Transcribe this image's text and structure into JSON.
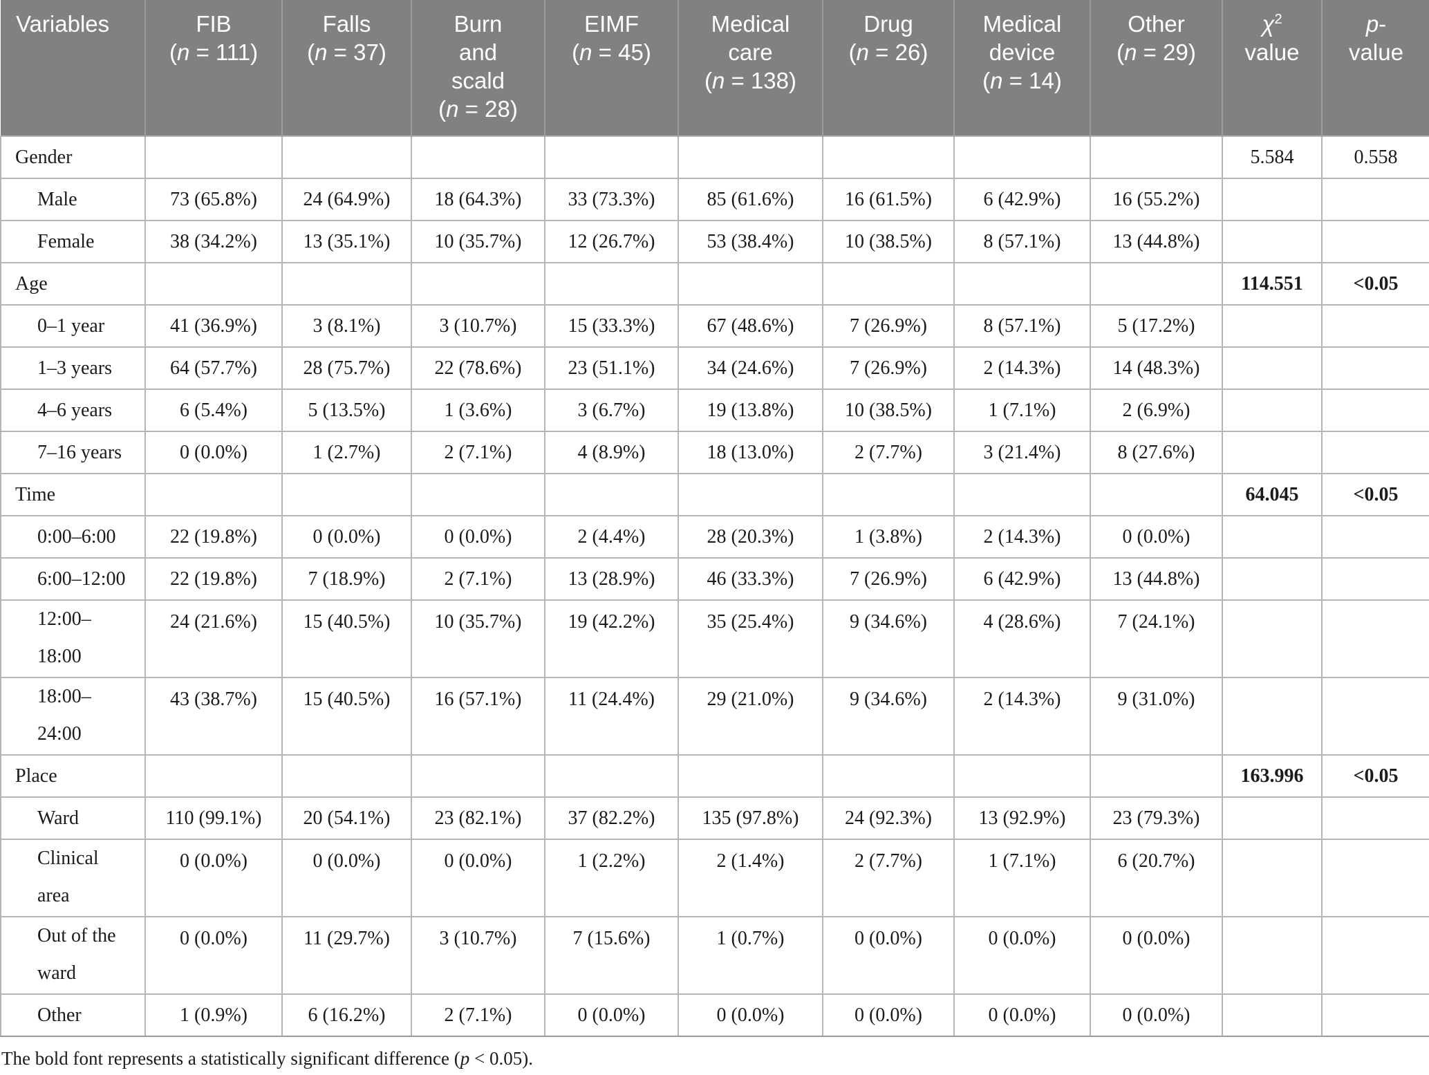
{
  "table": {
    "columns": [
      {
        "id": "variables",
        "label": "Variables"
      },
      {
        "id": "fib",
        "label": "FIB",
        "n_prefix": "(",
        "n_italic": "n",
        "n_suffix": " = 111)"
      },
      {
        "id": "falls",
        "label": "Falls",
        "n_prefix": "(",
        "n_italic": "n",
        "n_suffix": " = 37)"
      },
      {
        "id": "burn-and-scald",
        "label": "Burn and scald",
        "n_prefix": "(",
        "n_italic": "n",
        "n_suffix": " = 28)"
      },
      {
        "id": "eimf",
        "label": "EIMF",
        "n_prefix": "(",
        "n_italic": "n",
        "n_suffix": " = 45)"
      },
      {
        "id": "medical-care",
        "label": "Medical care",
        "n_prefix": "(",
        "n_italic": "n",
        "n_suffix": " = 138)"
      },
      {
        "id": "drug",
        "label": "Drug",
        "n_prefix": "(",
        "n_italic": "n",
        "n_suffix": " = 26)"
      },
      {
        "id": "medical-device",
        "label": "Medical device",
        "n_prefix": "(",
        "n_italic": "n",
        "n_suffix": " = 14)"
      },
      {
        "id": "other",
        "label": "Other",
        "n_prefix": "(",
        "n_italic": "n",
        "n_suffix": " = 29)"
      },
      {
        "id": "chi2-value",
        "sym_italic": "χ",
        "sym_sup": "2",
        "line2": "value"
      },
      {
        "id": "p-value",
        "p_italic": "p",
        "p_suffix": "-",
        "line2": "value"
      }
    ],
    "rows": [
      {
        "type": "category",
        "label": "Gender",
        "chi2": "5.584",
        "p": "0.558",
        "significant": false
      },
      {
        "type": "sub",
        "label": "Male",
        "values": [
          "73 (65.8%)",
          "24 (64.9%)",
          "18 (64.3%)",
          "33 (73.3%)",
          "85 (61.6%)",
          "16 (61.5%)",
          "6 (42.9%)",
          "16 (55.2%)"
        ]
      },
      {
        "type": "sub",
        "label": "Female",
        "values": [
          "38 (34.2%)",
          "13 (35.1%)",
          "10 (35.7%)",
          "12 (26.7%)",
          "53 (38.4%)",
          "10 (38.5%)",
          "8 (57.1%)",
          "13 (44.8%)"
        ]
      },
      {
        "type": "category",
        "label": "Age",
        "chi2": "114.551",
        "p": "<0.05",
        "significant": true
      },
      {
        "type": "sub",
        "label": "0–1 year",
        "values": [
          "41 (36.9%)",
          "3 (8.1%)",
          "3 (10.7%)",
          "15 (33.3%)",
          "67 (48.6%)",
          "7 (26.9%)",
          "8 (57.1%)",
          "5 (17.2%)"
        ]
      },
      {
        "type": "sub",
        "label": "1–3 years",
        "values": [
          "64 (57.7%)",
          "28 (75.7%)",
          "22 (78.6%)",
          "23 (51.1%)",
          "34 (24.6%)",
          "7 (26.9%)",
          "2 (14.3%)",
          "14 (48.3%)"
        ]
      },
      {
        "type": "sub",
        "label": "4–6 years",
        "values": [
          "6 (5.4%)",
          "5 (13.5%)",
          "1 (3.6%)",
          "3 (6.7%)",
          "19 (13.8%)",
          "10 (38.5%)",
          "1 (7.1%)",
          "2 (6.9%)"
        ]
      },
      {
        "type": "sub",
        "label": "7–16 years",
        "values": [
          "0 (0.0%)",
          "1 (2.7%)",
          "2 (7.1%)",
          "4 (8.9%)",
          "18 (13.0%)",
          "2 (7.7%)",
          "3 (21.4%)",
          "8 (27.6%)"
        ]
      },
      {
        "type": "category",
        "label": "Time",
        "chi2": "64.045",
        "p": "<0.05",
        "significant": true
      },
      {
        "type": "sub",
        "label": "0:00–6:00",
        "values": [
          "22 (19.8%)",
          "0 (0.0%)",
          "0 (0.0%)",
          "2 (4.4%)",
          "28 (20.3%)",
          "1 (3.8%)",
          "2 (14.3%)",
          "0 (0.0%)"
        ]
      },
      {
        "type": "sub",
        "label": "6:00–12:00",
        "values": [
          "22 (19.8%)",
          "7 (18.9%)",
          "2 (7.1%)",
          "13 (28.9%)",
          "46 (33.3%)",
          "7 (26.9%)",
          "6 (42.9%)",
          "13 (44.8%)"
        ]
      },
      {
        "type": "sub",
        "label": "12:00–18:00",
        "wrap": true,
        "values": [
          "24 (21.6%)",
          "15 (40.5%)",
          "10 (35.7%)",
          "19 (42.2%)",
          "35 (25.4%)",
          "9 (34.6%)",
          "4 (28.6%)",
          "7 (24.1%)"
        ]
      },
      {
        "type": "sub",
        "label": "18:00–24:00",
        "wrap": true,
        "values": [
          "43 (38.7%)",
          "15 (40.5%)",
          "16 (57.1%)",
          "11 (24.4%)",
          "29 (21.0%)",
          "9 (34.6%)",
          "2 (14.3%)",
          "9 (31.0%)"
        ]
      },
      {
        "type": "category",
        "label": "Place",
        "chi2": "163.996",
        "p": "<0.05",
        "significant": true
      },
      {
        "type": "sub",
        "label": "Ward",
        "values": [
          "110 (99.1%)",
          "20 (54.1%)",
          "23 (82.1%)",
          "37 (82.2%)",
          "135 (97.8%)",
          "24 (92.3%)",
          "13 (92.9%)",
          "23 (79.3%)"
        ]
      },
      {
        "type": "sub",
        "label": "Clinical area",
        "wrap": true,
        "values": [
          "0 (0.0%)",
          "0 (0.0%)",
          "0 (0.0%)",
          "1 (2.2%)",
          "2 (1.4%)",
          "2 (7.7%)",
          "1 (7.1%)",
          "6 (20.7%)"
        ]
      },
      {
        "type": "sub",
        "label": "Out of the ward",
        "wrap": true,
        "values": [
          "0 (0.0%)",
          "11 (29.7%)",
          "3 (10.7%)",
          "7 (15.6%)",
          "1 (0.7%)",
          "0 (0.0%)",
          "0 (0.0%)",
          "0 (0.0%)"
        ]
      },
      {
        "type": "sub",
        "label": "Other",
        "values": [
          "1 (0.9%)",
          "6 (16.2%)",
          "2 (7.1%)",
          "0 (0.0%)",
          "0 (0.0%)",
          "0 (0.0%)",
          "0 (0.0%)",
          "0 (0.0%)"
        ]
      }
    ]
  },
  "footnote": {
    "pre": "The bold font represents a statistically significant difference (",
    "p_italic": "p",
    "post": " < 0.05)."
  },
  "colors": {
    "header_bg": "#818181",
    "header_text": "#ffffff",
    "grid_line": "#b5b5b5",
    "header_divider": "#9c9c9c",
    "body_text": "#1b1b1b"
  }
}
